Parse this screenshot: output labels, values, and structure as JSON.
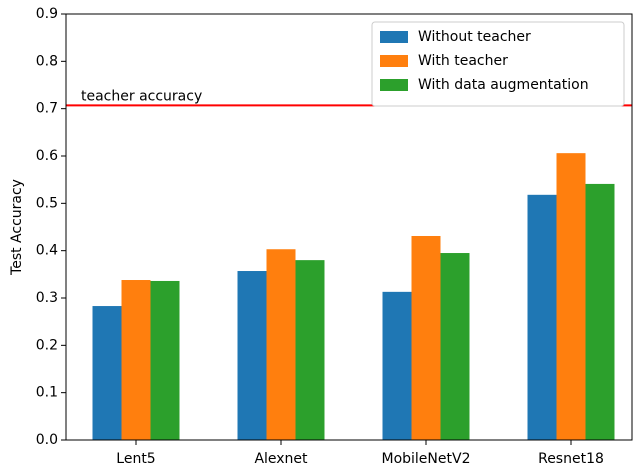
{
  "chart_data": {
    "type": "bar",
    "ylabel": "Test Accuracy",
    "categories": [
      "Lent5",
      "Alexnet",
      "MobileNetV2",
      "Resnet18"
    ],
    "series": [
      {
        "name": "Without teacher",
        "color": "#1f77b4",
        "values": [
          0.283,
          0.357,
          0.313,
          0.518
        ]
      },
      {
        "name": "With teacher",
        "color": "#ff7f0e",
        "values": [
          0.338,
          0.403,
          0.431,
          0.606
        ]
      },
      {
        "name": "With data augmentation",
        "color": "#2ca02c",
        "values": [
          0.336,
          0.38,
          0.395,
          0.541
        ]
      }
    ],
    "reference_line": {
      "value": 0.707,
      "label": "teacher accuracy",
      "color": "#ff0000"
    },
    "ylim": [
      0,
      0.9
    ],
    "yticks": [
      {
        "value": 0,
        "label": "0.0"
      },
      0.1,
      0.2,
      0.3,
      0.4,
      0.5,
      0.6,
      0.7,
      0.8,
      0.9
    ],
    "legend": "upper right",
    "grid": false
  }
}
